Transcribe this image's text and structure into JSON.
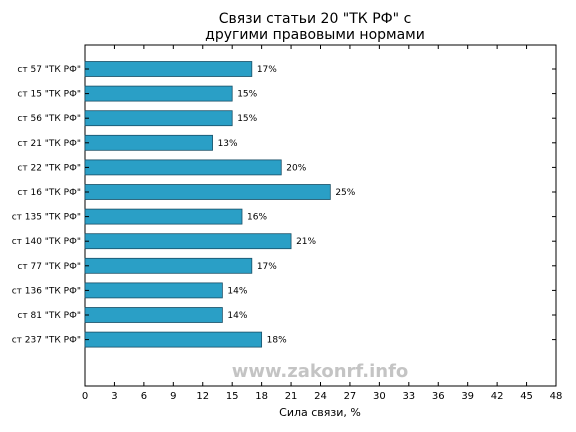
{
  "chart_data": {
    "type": "bar",
    "orientation": "horizontal",
    "title": [
      "Связи статьи 20 \"ТК РФ\" с",
      "другими правовыми нормами"
    ],
    "xlabel": "Сила связи, %",
    "ylabel": "",
    "categories": [
      "ст 57 \"ТК РФ\"",
      "ст 15 \"ТК РФ\"",
      "ст 56 \"ТК РФ\"",
      "ст 21 \"ТК РФ\"",
      "ст 22 \"ТК РФ\"",
      "ст 16 \"ТК РФ\"",
      "ст 135 \"ТК РФ\"",
      "ст 140 \"ТК РФ\"",
      "ст 77 \"ТК РФ\"",
      "ст 136 \"ТК РФ\"",
      "ст 81 \"ТК РФ\"",
      "ст 237 \"ТК РФ\""
    ],
    "values": [
      17,
      15,
      15,
      13,
      20,
      25,
      16,
      21,
      17,
      14,
      14,
      18
    ],
    "value_labels": [
      "17%",
      "15%",
      "15%",
      "13%",
      "20%",
      "25%",
      "16%",
      "21%",
      "17%",
      "14%",
      "14%",
      "18%"
    ],
    "xlim": [
      0,
      48
    ],
    "xticks": [
      0,
      3,
      6,
      9,
      12,
      15,
      18,
      21,
      24,
      27,
      30,
      33,
      36,
      39,
      42,
      45,
      48
    ],
    "grid": false,
    "bar_color": "#2a9fc6",
    "watermark": "www.zakonrf.info"
  }
}
